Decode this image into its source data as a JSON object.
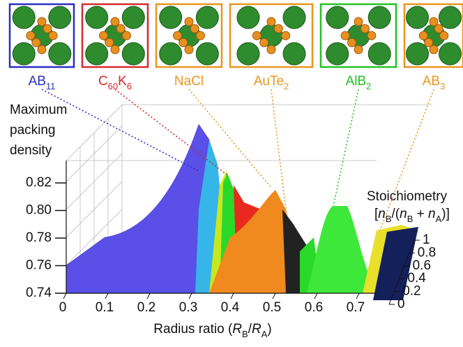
{
  "structures": [
    {
      "parts": [
        "AB",
        "11"
      ],
      "color": "#2a2fc0"
    },
    {
      "parts": [
        "C",
        "60",
        "K",
        "6"
      ],
      "color": "#d42a2a"
    },
    {
      "parts": [
        "NaCl"
      ],
      "color": "#e8961e"
    },
    {
      "parts": [
        "AuTe",
        "2"
      ],
      "color": "#e8961e"
    },
    {
      "parts": [
        "AlB",
        "2"
      ],
      "color": "#22c322"
    },
    {
      "parts": [
        "AB",
        "3"
      ],
      "color": "#e8961e"
    }
  ],
  "z_axis": {
    "label": [
      "Maximum",
      "packing",
      "density"
    ],
    "ticks": [
      0.74,
      0.76,
      0.78,
      {
        "value": 0.8,
        "label": "0.80"
      },
      0.82
    ]
  },
  "x_axis": {
    "label": [
      "Radius ratio (",
      "R",
      "B",
      "/",
      "R",
      "A",
      ")"
    ],
    "ticks": [
      0,
      0.1,
      0.2,
      0.3,
      0.4,
      0.5,
      0.6,
      0.7
    ]
  },
  "s_axis": {
    "label": "Stoichiometry",
    "sublabel": [
      "[",
      "n",
      "B",
      "/(",
      "n",
      "B",
      " + ",
      "n",
      "A",
      ")]"
    ],
    "ticks": [
      0,
      0.2,
      0.4,
      0.6,
      0.8,
      1
    ]
  }
}
